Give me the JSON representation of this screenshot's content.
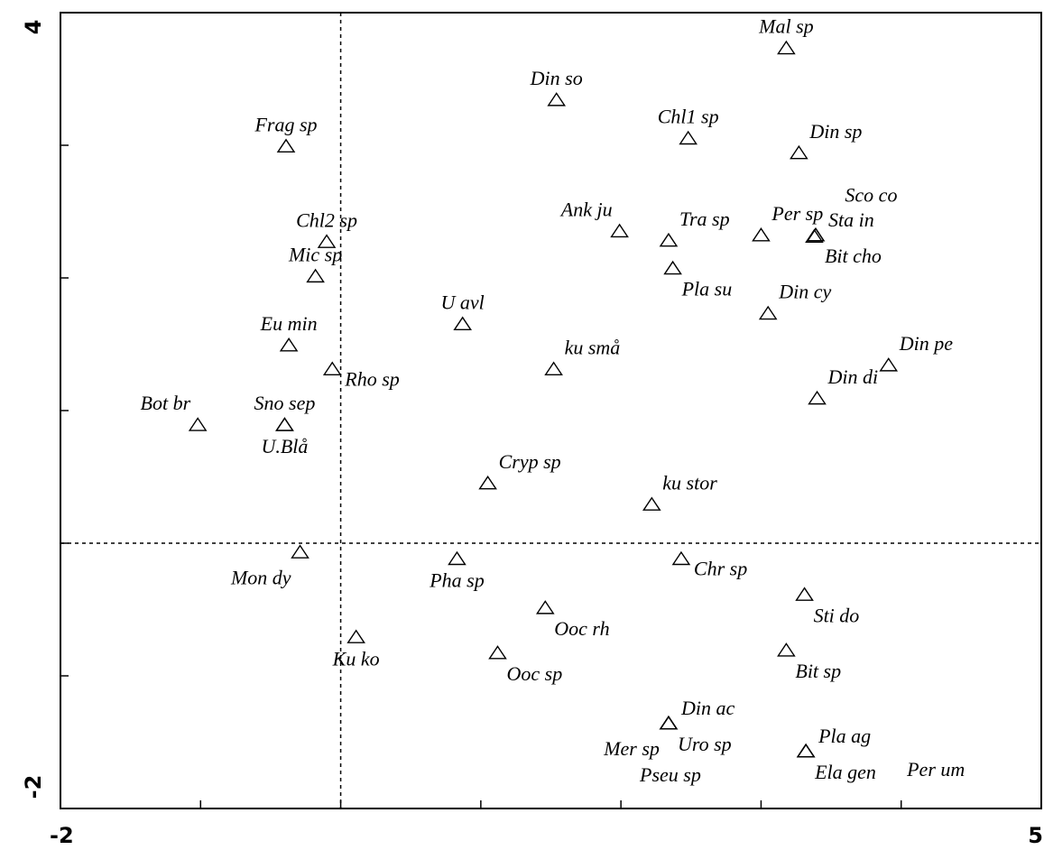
{
  "chart_data": {
    "type": "scatter",
    "xlim": [
      -2,
      5
    ],
    "ylim": [
      -2,
      4
    ],
    "x_tick_labels": [
      {
        "value": -2,
        "label": "-2"
      },
      {
        "value": 5,
        "label": "5"
      }
    ],
    "y_tick_labels": [
      {
        "value": 4,
        "label": "4"
      },
      {
        "value": -2,
        "label": "-2"
      }
    ],
    "x_ticks": [
      -2,
      -1,
      0,
      1,
      2,
      3,
      4,
      5
    ],
    "y_ticks": [
      -2,
      -1,
      0,
      1,
      2,
      3,
      4
    ],
    "zero_lines": {
      "x": 0,
      "y": 0,
      "style": "dashed"
    },
    "marker": "open-triangle",
    "points": [
      {
        "label": "Mal sp",
        "x": 3.18,
        "y": 3.73,
        "label_pos": "above"
      },
      {
        "label": "Din so",
        "x": 1.54,
        "y": 3.34,
        "label_pos": "above"
      },
      {
        "label": "Frag sp",
        "x": -0.39,
        "y": 2.99,
        "label_pos": "above"
      },
      {
        "label": "Chl1 sp",
        "x": 2.48,
        "y": 3.05,
        "label_pos": "above"
      },
      {
        "label": "Din sp",
        "x": 3.27,
        "y": 2.94,
        "label_pos": "above-right"
      },
      {
        "label": "Sco co",
        "x": 3.38,
        "y": 2.31,
        "label_pos": "above-right-far"
      },
      {
        "label": "Ank ju",
        "x": 1.99,
        "y": 2.35,
        "label_pos": "above-left"
      },
      {
        "label": "Tra sp",
        "x": 2.34,
        "y": 2.28,
        "label_pos": "above-right"
      },
      {
        "label": "Per sp",
        "x": 3.0,
        "y": 2.32,
        "label_pos": "above-right"
      },
      {
        "label": "Sta in",
        "x": 3.39,
        "y": 2.32,
        "label_pos": "right-up"
      },
      {
        "label": "Bit cho",
        "x": 3.39,
        "y": 2.32,
        "label_pos": "below-right"
      },
      {
        "label": "Chl2 sp",
        "x": -0.1,
        "y": 2.27,
        "label_pos": "above"
      },
      {
        "label": "Mic sp",
        "x": -0.18,
        "y": 2.01,
        "label_pos": "above"
      },
      {
        "label": "Pla su",
        "x": 2.37,
        "y": 2.07,
        "label_pos": "below-right"
      },
      {
        "label": "Din cy",
        "x": 3.05,
        "y": 1.73,
        "label_pos": "above-right"
      },
      {
        "label": "U avl",
        "x": 0.87,
        "y": 1.65,
        "label_pos": "above"
      },
      {
        "label": "Eu min",
        "x": -0.37,
        "y": 1.49,
        "label_pos": "above"
      },
      {
        "label": "ku små",
        "x": 1.52,
        "y": 1.31,
        "label_pos": "above-right"
      },
      {
        "label": "Rho sp",
        "x": -0.06,
        "y": 1.31,
        "label_pos": "right"
      },
      {
        "label": "Din pe",
        "x": 3.91,
        "y": 1.34,
        "label_pos": "above-right"
      },
      {
        "label": "Din di",
        "x": 3.4,
        "y": 1.09,
        "label_pos": "above-right"
      },
      {
        "label": "Bot br",
        "x": -1.02,
        "y": 0.89,
        "label_pos": "above-left"
      },
      {
        "label": "Sno sep",
        "x": -0.4,
        "y": 0.89,
        "label_pos": "above"
      },
      {
        "label": "U.Blå",
        "x": -0.4,
        "y": 0.89,
        "label_pos": "below"
      },
      {
        "label": "Cryp sp",
        "x": 1.05,
        "y": 0.45,
        "label_pos": "above-right"
      },
      {
        "label": "ku stor",
        "x": 2.22,
        "y": 0.29,
        "label_pos": "above-right"
      },
      {
        "label": "Mon dy",
        "x": -0.29,
        "y": -0.07,
        "label_pos": "below-left"
      },
      {
        "label": "Pha sp",
        "x": 0.83,
        "y": -0.12,
        "label_pos": "below"
      },
      {
        "label": "Chr sp",
        "x": 2.43,
        "y": -0.12,
        "label_pos": "right"
      },
      {
        "label": "Sti do",
        "x": 3.31,
        "y": -0.39,
        "label_pos": "below-right"
      },
      {
        "label": "Ooc rh",
        "x": 1.46,
        "y": -0.49,
        "label_pos": "below-right"
      },
      {
        "label": "Ku ko",
        "x": 0.11,
        "y": -0.71,
        "label_pos": "below"
      },
      {
        "label": "Ooc sp",
        "x": 1.12,
        "y": -0.83,
        "label_pos": "below-right"
      },
      {
        "label": "Bit sp",
        "x": 3.18,
        "y": -0.81,
        "label_pos": "below-right"
      },
      {
        "label": "Din ac",
        "x": 2.34,
        "y": -1.36,
        "label_pos": "right-up"
      },
      {
        "label": "Mer sp",
        "x": 2.34,
        "y": -1.36,
        "label_pos": "below-left"
      },
      {
        "label": "Uro sp",
        "x": 2.34,
        "y": -1.36,
        "label_pos": "below-right"
      },
      {
        "label": "Pseu sp",
        "x": 2.34,
        "y": -1.36,
        "label_pos": "below-far"
      },
      {
        "label": "Pla ag",
        "x": 3.32,
        "y": -1.57,
        "label_pos": "right-up"
      },
      {
        "label": "Ela gen",
        "x": 3.32,
        "y": -1.57,
        "label_pos": "below-right"
      },
      {
        "label": "Per um",
        "x": 3.32,
        "y": -1.57,
        "label_pos": "right-far"
      }
    ]
  }
}
